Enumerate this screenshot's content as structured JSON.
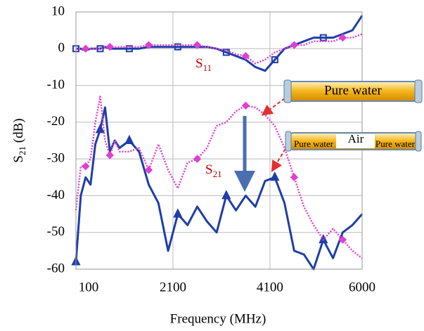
{
  "chart_data": {
    "type": "line",
    "xlabel": "Frequency (MHz)",
    "ylabel": {
      "text": "S",
      "sub": "21",
      "suffix": " (dB)"
    },
    "x": [
      100,
      200,
      300,
      400,
      500,
      600,
      700,
      800,
      900,
      1000,
      1200,
      1400,
      1600,
      1800,
      2000,
      2200,
      2400,
      2600,
      2800,
      3000,
      3200,
      3400,
      3600,
      3800,
      4000,
      4200,
      4400,
      4600,
      4800,
      5000,
      5200,
      5400,
      5600,
      5800,
      6000
    ],
    "series": [
      {
        "color": "#1f3ea8",
        "style": "solid",
        "marker": "square",
        "values": [
          0,
          0,
          -0.5,
          0,
          0,
          0,
          0.5,
          0,
          0,
          0,
          0,
          0,
          0.5,
          0.5,
          0.5,
          0.5,
          0.5,
          0.5,
          0.5,
          0,
          -1,
          -2,
          -3,
          -5,
          -6,
          -3,
          0,
          1,
          2,
          3,
          3,
          3,
          4,
          5,
          9
        ]
      },
      {
        "color": "#e040d0",
        "style": "dotted",
        "marker": "diamond",
        "values": [
          0,
          0,
          0,
          0,
          0,
          0,
          0.5,
          0.5,
          0.5,
          0.5,
          0.5,
          0.5,
          1,
          1,
          1,
          1,
          1,
          1,
          0.5,
          0,
          -0.5,
          -1.5,
          -2,
          -4,
          -3,
          -1,
          0,
          1,
          1,
          2,
          2,
          2,
          3,
          3,
          4
        ]
      },
      {
        "color": "#1f3ea8",
        "style": "solid",
        "marker": "triangle",
        "values": [
          -58,
          -40,
          -35,
          -37,
          -26,
          -22,
          -16,
          -28,
          -25,
          -27,
          -25,
          -28,
          -37,
          -42,
          -55,
          -45,
          -48,
          -43,
          -47,
          -50,
          -40,
          -44,
          -40,
          -43,
          -36,
          -35,
          -42,
          -55,
          -56,
          -60,
          -52,
          -57,
          -50,
          -48,
          -45
        ]
      },
      {
        "color": "#e040d0",
        "style": "dotted",
        "marker": "diamond",
        "values": [
          -44,
          -32,
          -32,
          -30,
          -20,
          -13,
          -25,
          -29,
          -25,
          -28,
          -28,
          -27,
          -33,
          -26,
          -33,
          -38,
          -31,
          -30,
          -27,
          -21,
          -20,
          -17,
          -15.5,
          -16,
          -18,
          -21,
          -27,
          -35,
          -43,
          -48,
          -52,
          -49,
          -52,
          -55,
          -57
        ]
      }
    ],
    "xlim": [
      100,
      6000
    ],
    "xticks": [
      100,
      2100,
      4100,
      6000
    ],
    "ylim": [
      -60,
      10
    ],
    "yticks": [
      -60,
      -50,
      -40,
      -30,
      -20,
      -10,
      0,
      10
    ],
    "grid": true,
    "annotations": [
      {
        "text": "S",
        "sub": "11"
      },
      {
        "text": "S",
        "sub": "21"
      }
    ],
    "insets": {
      "tube1": "Pure water",
      "tube2_left": "Pure water",
      "tube2_mid": "Air",
      "tube2_right": "Pure water"
    }
  }
}
